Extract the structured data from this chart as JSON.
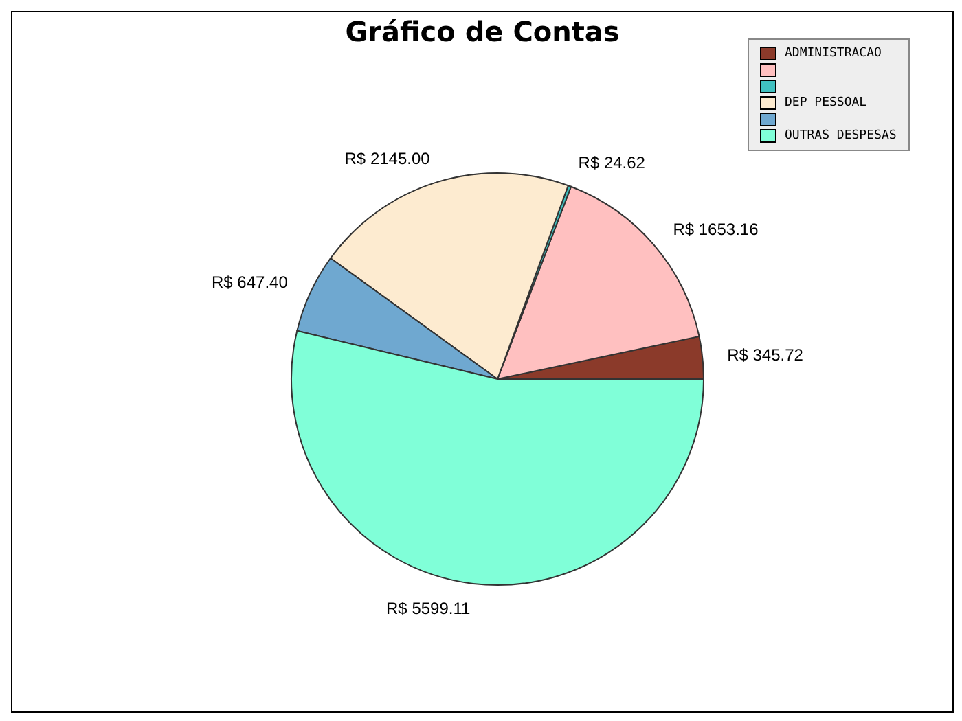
{
  "chart_data": {
    "type": "pie",
    "title": "Gráfico de Contas",
    "categories": [
      "ADMINISTRACAO",
      null,
      null,
      "DEP PESSOAL",
      null,
      "OUTRAS DESPESAS"
    ],
    "values": [
      345.72,
      1653.16,
      24.62,
      2145.0,
      647.4,
      5599.11
    ],
    "value_labels": [
      "R$ 345.72",
      "R$ 1653.16",
      "R$ 24.62",
      "R$ 2145.00",
      "R$ 647.40",
      "R$ 5599.11"
    ],
    "colors": [
      "#8b3a2a",
      "#ffc0c0",
      "#40c0c0",
      "#fdebd0",
      "#6fa8d0",
      "#80ffd8"
    ],
    "legend": "top right"
  }
}
